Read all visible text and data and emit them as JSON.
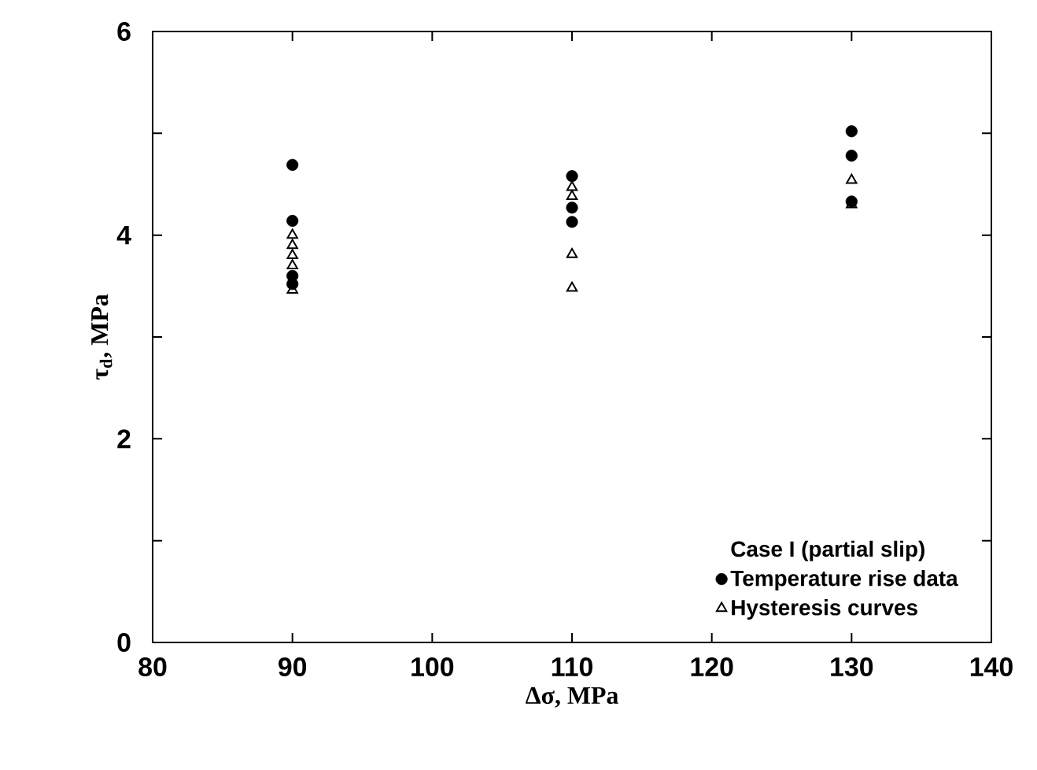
{
  "chart_data": {
    "type": "scatter",
    "xlabel": "Δσ, MPa",
    "ylabel": "τ$_{d}$, MPa",
    "legend_title": "Case I (partial slip)",
    "legend": "bottom right",
    "grid": false,
    "xlim": [
      80,
      140
    ],
    "xticks": [
      80,
      90,
      100,
      110,
      120,
      130,
      140
    ],
    "ylim": [
      0,
      6
    ],
    "yticks": [
      0,
      {
        "value": 1,
        "label": null
      },
      2,
      {
        "value": 3,
        "label": null
      },
      4,
      {
        "value": 5,
        "label": null
      },
      6
    ],
    "series": [
      {
        "name": "Temperature rise data",
        "color": "#000000",
        "marker": "circle",
        "x": [
          90,
          90,
          90,
          90,
          110,
          110,
          110,
          130,
          130,
          130
        ],
        "values": [
          4.69,
          4.14,
          3.6,
          3.52,
          4.58,
          4.27,
          4.13,
          5.02,
          4.78,
          4.33
        ]
      },
      {
        "name": "Hysteresis curves",
        "color": "#000000",
        "marker": "triangle",
        "x": [
          90,
          90,
          90,
          90,
          90,
          110,
          110,
          110,
          110,
          130,
          130
        ],
        "values": [
          4.0,
          3.9,
          3.8,
          3.7,
          3.46,
          4.47,
          4.38,
          3.81,
          3.48,
          4.54,
          4.3
        ]
      }
    ]
  }
}
